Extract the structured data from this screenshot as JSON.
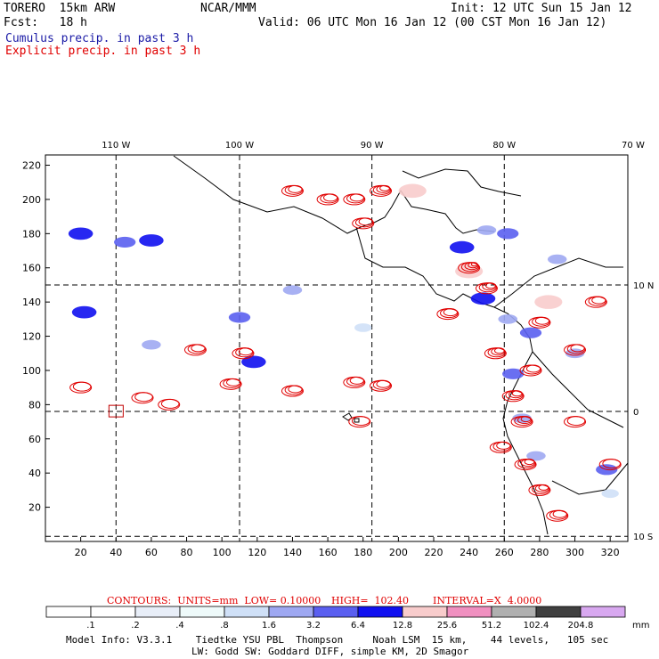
{
  "header": {
    "model": "TORERO  15km ARW",
    "org": "NCAR/MMM",
    "init": "Init: 12 UTC Sun 15 Jan 12",
    "fcst": "Fcst:   18 h",
    "valid": "Valid: 06 UTC Mon 16 Jan 12 (00 CST Mon 16 Jan 12)",
    "legend_cumulus": "Cumulus precip. in past 3 h",
    "legend_explicit": "Explicit precip. in past 3 h"
  },
  "contours": {
    "units": "CONTOURS:  UNITS=mm  LOW= 0.10000",
    "high": "HIGH=  102.40",
    "interval": "INTERVAL=X  4.0000"
  },
  "colorbar": {
    "unit": "mm",
    "labels": [
      ".1",
      ".2",
      ".4",
      ".8",
      "1.6",
      "3.2",
      "6.4",
      "12.8",
      "25.6",
      "51.2",
      "102.4",
      "204.8"
    ],
    "colors": [
      "#ffffff",
      "#ffffff",
      "#e8eef8",
      "#eefafa",
      "#cfe0f7",
      "#9ea8f2",
      "#5a5ff0",
      "#1010f0",
      "#f8cccc",
      "#f090c0",
      "#b0b0b0",
      "#404040",
      "#d8a8f0"
    ]
  },
  "footer": {
    "line1": "Model Info: V3.3.1    Tiedtke YSU PBL  Thompson     Noah LSM  15 km,    44 levels,   105 sec",
    "line2": "LW: Godd SW: Goddard DIFF, simple KM, 2D Smagor"
  },
  "chart_data": {
    "type": "heatmap",
    "title": "Cumulus precip. in past 3 h / Explicit precip. in past 3 h",
    "xlabel": "",
    "ylabel": "",
    "x_ticks": [
      20,
      40,
      60,
      80,
      100,
      120,
      140,
      160,
      180,
      200,
      220,
      240,
      260,
      280,
      300,
      320
    ],
    "y_ticks": [
      20,
      40,
      60,
      80,
      100,
      120,
      140,
      160,
      180,
      200,
      220
    ],
    "xlim": [
      0,
      330
    ],
    "ylim": [
      0,
      226
    ],
    "lon_labels": [
      "110 W",
      "100 W",
      "90 W",
      "80 W",
      "70 W"
    ],
    "lon_grid_x": [
      40,
      110,
      185,
      260,
      333
    ],
    "lat_labels": [
      "10 N",
      "0",
      "10 S"
    ],
    "lat_grid_y": [
      150,
      76,
      3
    ],
    "cumulus_cells": [
      {
        "x": 20,
        "y": 180,
        "v": 6.4
      },
      {
        "x": 60,
        "y": 176,
        "v": 6.4
      },
      {
        "x": 45,
        "y": 175,
        "v": 3.2
      },
      {
        "x": 22,
        "y": 134,
        "v": 6.4
      },
      {
        "x": 110,
        "y": 131,
        "v": 3.2
      },
      {
        "x": 118,
        "y": 105,
        "v": 6.4
      },
      {
        "x": 140,
        "y": 147,
        "v": 1.6
      },
      {
        "x": 60,
        "y": 115,
        "v": 1.6
      },
      {
        "x": 180,
        "y": 125,
        "v": 0.8
      },
      {
        "x": 208,
        "y": 205,
        "v": 12.8
      },
      {
        "x": 236,
        "y": 172,
        "v": 6.4
      },
      {
        "x": 250,
        "y": 182,
        "v": 1.6
      },
      {
        "x": 262,
        "y": 180,
        "v": 3.2
      },
      {
        "x": 240,
        "y": 158,
        "v": 12.8
      },
      {
        "x": 248,
        "y": 142,
        "v": 6.4
      },
      {
        "x": 262,
        "y": 130,
        "v": 1.6
      },
      {
        "x": 275,
        "y": 122,
        "v": 3.2
      },
      {
        "x": 285,
        "y": 140,
        "v": 12.8
      },
      {
        "x": 290,
        "y": 165,
        "v": 1.6
      },
      {
        "x": 265,
        "y": 98,
        "v": 3.2
      },
      {
        "x": 270,
        "y": 72,
        "v": 1.6
      },
      {
        "x": 278,
        "y": 50,
        "v": 1.6
      },
      {
        "x": 318,
        "y": 42,
        "v": 3.2
      },
      {
        "x": 320,
        "y": 28,
        "v": 0.8
      },
      {
        "x": 300,
        "y": 110,
        "v": 1.6
      }
    ],
    "explicit_cells": [
      {
        "x": 190,
        "y": 205,
        "v": 12.8
      },
      {
        "x": 140,
        "y": 205,
        "v": 6.4
      },
      {
        "x": 160,
        "y": 200,
        "v": 6.4
      },
      {
        "x": 175,
        "y": 200,
        "v": 6.4
      },
      {
        "x": 180,
        "y": 186,
        "v": 6.4
      },
      {
        "x": 240,
        "y": 160,
        "v": 25.6
      },
      {
        "x": 250,
        "y": 148,
        "v": 12.8
      },
      {
        "x": 228,
        "y": 133,
        "v": 6.4
      },
      {
        "x": 280,
        "y": 128,
        "v": 6.4
      },
      {
        "x": 300,
        "y": 112,
        "v": 6.4
      },
      {
        "x": 312,
        "y": 140,
        "v": 6.4
      },
      {
        "x": 255,
        "y": 110,
        "v": 12.8
      },
      {
        "x": 275,
        "y": 100,
        "v": 6.4
      },
      {
        "x": 85,
        "y": 112,
        "v": 6.4
      },
      {
        "x": 112,
        "y": 110,
        "v": 6.4
      },
      {
        "x": 105,
        "y": 92,
        "v": 6.4
      },
      {
        "x": 140,
        "y": 88,
        "v": 6.4
      },
      {
        "x": 175,
        "y": 93,
        "v": 6.4
      },
      {
        "x": 190,
        "y": 91,
        "v": 6.4
      },
      {
        "x": 20,
        "y": 90,
        "v": 3.2
      },
      {
        "x": 55,
        "y": 84,
        "v": 3.2
      },
      {
        "x": 70,
        "y": 80,
        "v": 3.2
      },
      {
        "x": 265,
        "y": 85,
        "v": 12.8
      },
      {
        "x": 270,
        "y": 70,
        "v": 12.8
      },
      {
        "x": 258,
        "y": 55,
        "v": 6.4
      },
      {
        "x": 272,
        "y": 45,
        "v": 12.8
      },
      {
        "x": 280,
        "y": 30,
        "v": 12.8
      },
      {
        "x": 290,
        "y": 15,
        "v": 6.4
      },
      {
        "x": 300,
        "y": 70,
        "v": 3.2
      },
      {
        "x": 320,
        "y": 45,
        "v": 3.2
      },
      {
        "x": 178,
        "y": 70,
        "v": 3.2
      }
    ]
  }
}
